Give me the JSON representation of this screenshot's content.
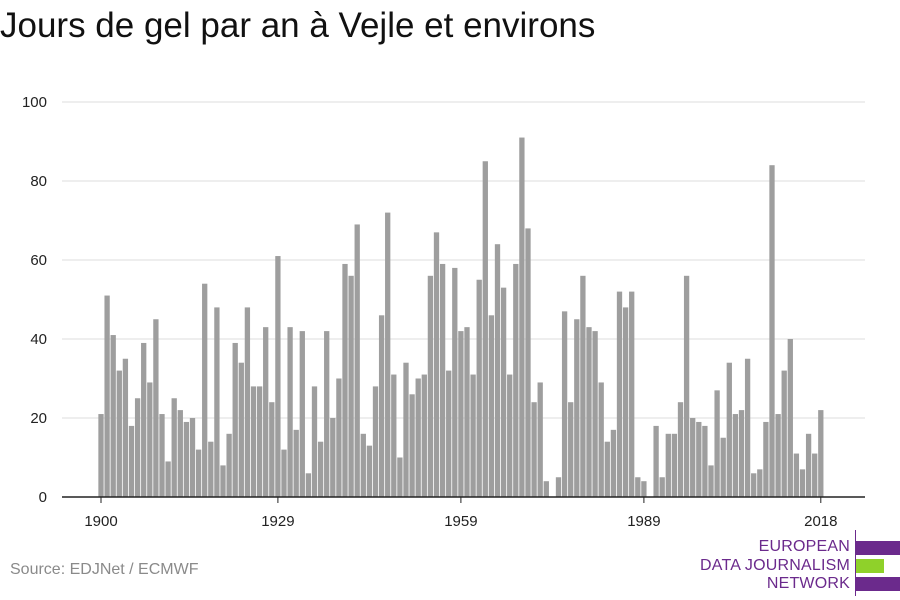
{
  "chart_data": {
    "type": "bar",
    "title": "Jours de gel par an à Vejle et environs",
    "xlabel": "",
    "ylabel": "",
    "ylim": [
      0,
      100
    ],
    "yticks": [
      0,
      20,
      40,
      60,
      80,
      100
    ],
    "xticks": [
      1900,
      1929,
      1959,
      1989,
      2018
    ],
    "grid": true,
    "bar_color": "#9e9e9e",
    "x": [
      1900,
      1901,
      1902,
      1903,
      1904,
      1905,
      1906,
      1907,
      1908,
      1909,
      1910,
      1911,
      1912,
      1913,
      1914,
      1915,
      1916,
      1917,
      1918,
      1919,
      1920,
      1921,
      1922,
      1923,
      1924,
      1925,
      1926,
      1927,
      1928,
      1929,
      1930,
      1931,
      1932,
      1933,
      1934,
      1935,
      1936,
      1937,
      1938,
      1939,
      1940,
      1941,
      1942,
      1943,
      1944,
      1945,
      1946,
      1947,
      1948,
      1949,
      1950,
      1951,
      1952,
      1953,
      1954,
      1955,
      1956,
      1957,
      1958,
      1959,
      1960,
      1961,
      1962,
      1963,
      1964,
      1965,
      1966,
      1967,
      1968,
      1969,
      1970,
      1971,
      1972,
      1973,
      1974,
      1975,
      1976,
      1977,
      1978,
      1979,
      1980,
      1981,
      1982,
      1983,
      1984,
      1985,
      1986,
      1987,
      1988,
      1989,
      1990,
      1991,
      1992,
      1993,
      1994,
      1995,
      1996,
      1997,
      1998,
      1999,
      2000,
      2001,
      2002,
      2003,
      2004,
      2005,
      2006,
      2007,
      2008,
      2009,
      2010,
      2011,
      2012,
      2013,
      2014,
      2015,
      2016,
      2017,
      2018
    ],
    "values": [
      21,
      51,
      41,
      32,
      35,
      18,
      25,
      39,
      29,
      45,
      21,
      9,
      25,
      22,
      19,
      20,
      12,
      54,
      14,
      48,
      8,
      16,
      39,
      34,
      48,
      28,
      28,
      43,
      24,
      61,
      12,
      43,
      17,
      42,
      6,
      28,
      14,
      42,
      20,
      30,
      59,
      56,
      69,
      16,
      13,
      28,
      46,
      72,
      31,
      10,
      34,
      26,
      30,
      31,
      56,
      67,
      59,
      32,
      58,
      42,
      43,
      31,
      55,
      85,
      46,
      64,
      53,
      31,
      59,
      91,
      68,
      24,
      29,
      4,
      0,
      5,
      47,
      24,
      45,
      56,
      43,
      42,
      29,
      14,
      17,
      52,
      48,
      52,
      5,
      4,
      0,
      18,
      5,
      16,
      16,
      24,
      56,
      20,
      19,
      18,
      8,
      27,
      15,
      34,
      21,
      22,
      35,
      6,
      7,
      19,
      84,
      21,
      32,
      40,
      11,
      7,
      16,
      11,
      22
    ]
  },
  "source": "Source: EDJNet / ECMWF",
  "logo": {
    "line1": "EUROPEAN",
    "line2": "DATA JOURNALISM",
    "line3": "NETWORK",
    "purple": "#6b2a8c",
    "green": "#8fd12a"
  }
}
